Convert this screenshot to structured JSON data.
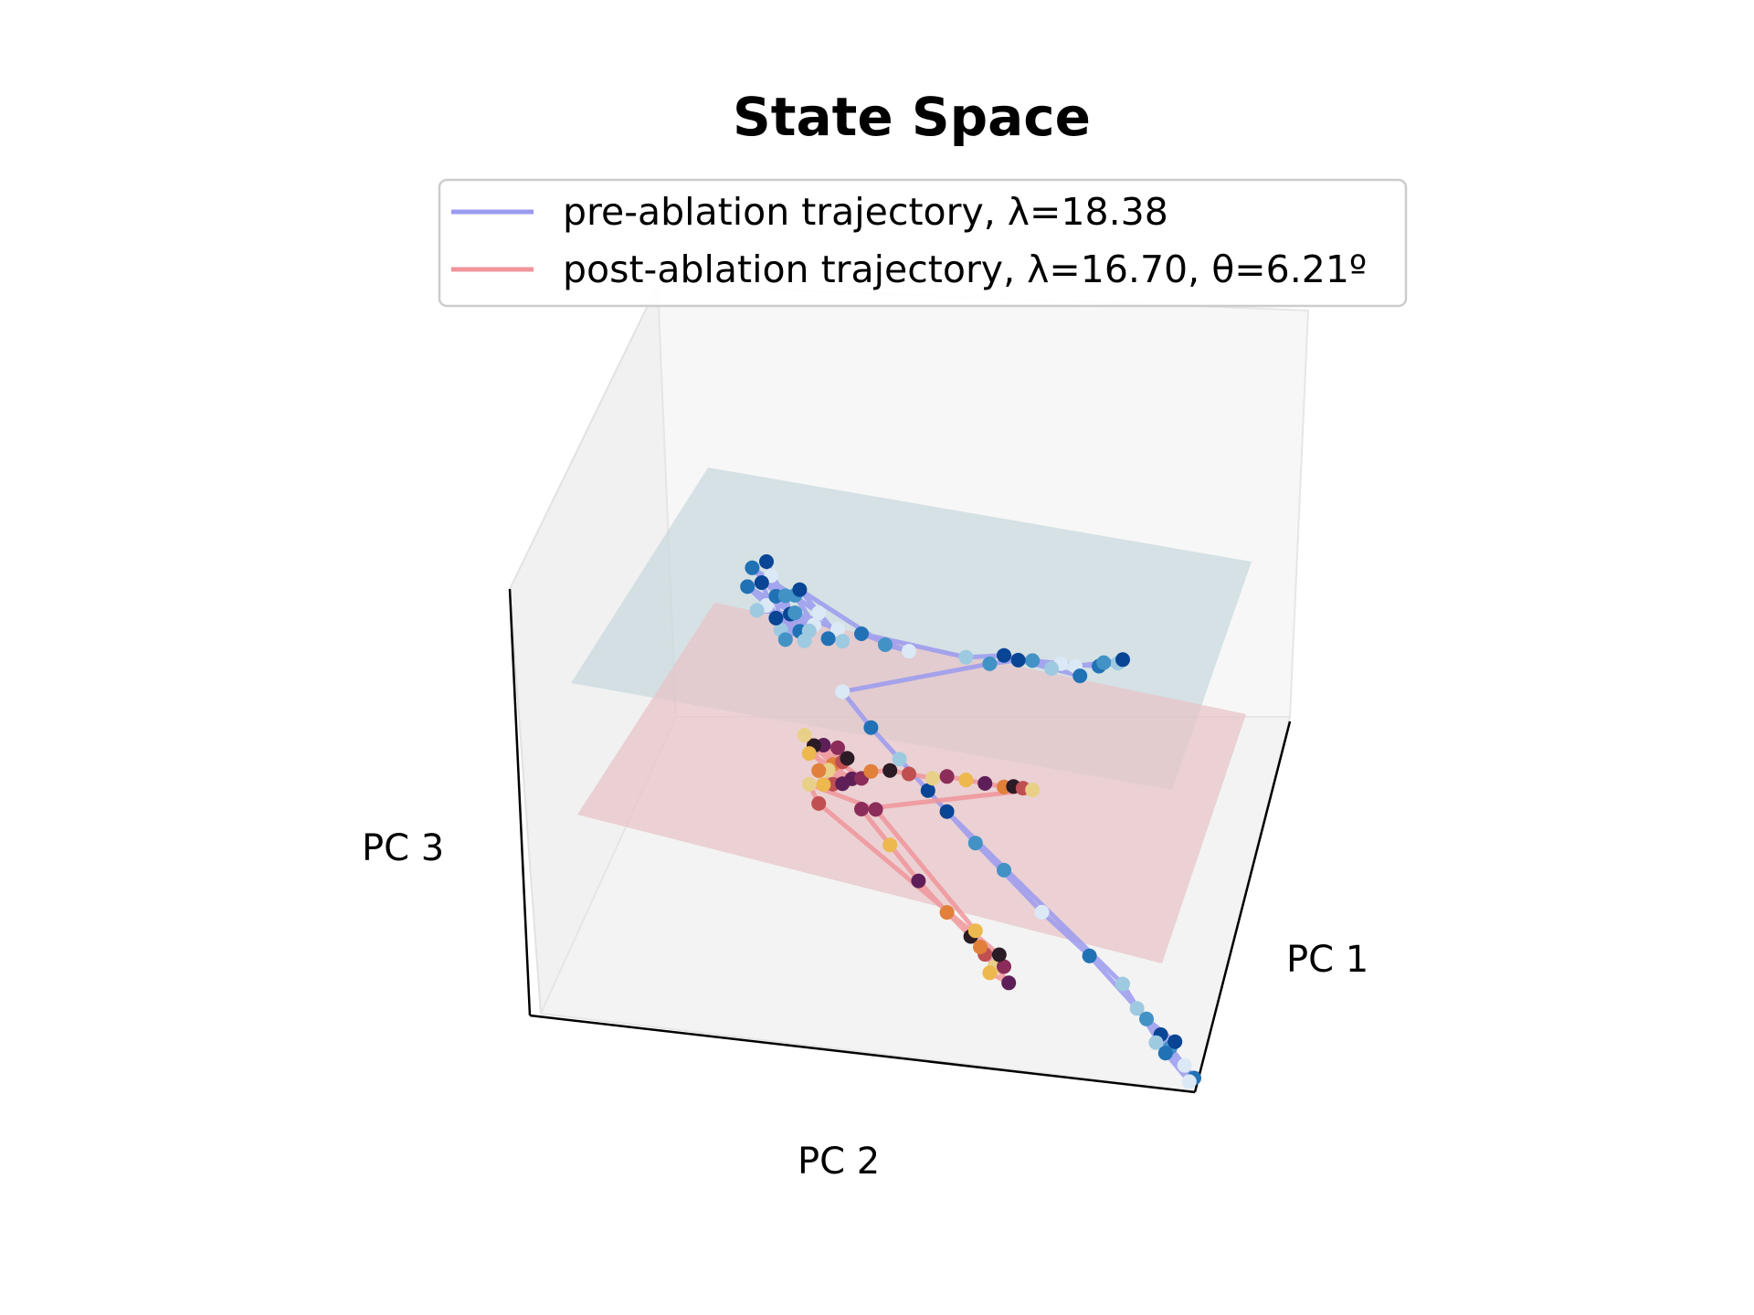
{
  "chart_data": {
    "type": "scatter",
    "projection": "3d",
    "title": "State Space",
    "axes": {
      "xlabel": "PC 1",
      "ylabel": "PC 2",
      "zlabel": "PC 3",
      "grid": false,
      "ticks": false
    },
    "legend": {
      "placement": "top-center",
      "entries": [
        {
          "label": "pre-ablation trajectory, λ=18.38",
          "color": "#9a9af0"
        },
        {
          "label": "post-ablation trajectory, λ=16.70, θ=6.21º",
          "color": "#f0959a"
        }
      ]
    },
    "planes": [
      {
        "name": "pre-ablation plane",
        "color": "#c8d8dc"
      },
      {
        "name": "post-ablation plane",
        "color": "#e8c4c6"
      }
    ],
    "series": [
      {
        "name": "pre-ablation trajectory",
        "line_color": "#9a9af0",
        "marker_colormap": [
          "#dbe9f6",
          "#9ecae1",
          "#4292c6",
          "#2171b5",
          "#084594"
        ],
        "points": [
          [
            0.2,
            0.35
          ],
          [
            0.22,
            0.42
          ],
          [
            0.18,
            0.3
          ],
          [
            0.25,
            0.38
          ],
          [
            0.24,
            0.45
          ],
          [
            0.21,
            0.5
          ],
          [
            0.27,
            0.33
          ],
          [
            0.23,
            0.28
          ],
          [
            0.19,
            0.44
          ],
          [
            0.26,
            0.48
          ],
          [
            0.3,
            0.4
          ],
          [
            0.16,
            0.38
          ],
          [
            0.28,
            0.3
          ],
          [
            0.2,
            0.55
          ],
          [
            0.24,
            0.25
          ],
          [
            0.31,
            0.47
          ],
          [
            0.17,
            0.48
          ],
          [
            0.29,
            0.36
          ],
          [
            0.22,
            0.32
          ],
          [
            0.26,
            0.4
          ],
          [
            0.35,
            0.45
          ],
          [
            0.33,
            0.38
          ],
          [
            0.36,
            0.41
          ],
          [
            0.27,
            0.52
          ],
          [
            0.45,
            0.52
          ],
          [
            0.5,
            0.56
          ],
          [
            0.4,
            0.5
          ],
          [
            0.62,
            0.7
          ],
          [
            0.7,
            0.82
          ],
          [
            0.76,
            0.88
          ],
          [
            0.82,
            0.95
          ],
          [
            0.9,
            1.05
          ],
          [
            0.94,
            1.12
          ],
          [
            0.95,
            1.15
          ],
          [
            0.91,
            1.08
          ],
          [
            0.85,
            0.98
          ],
          [
            0.86,
            0.95
          ],
          [
            0.8,
            0.9
          ],
          [
            0.73,
            0.84
          ],
          [
            0.67,
            0.74
          ],
          [
            0.36,
            0.18
          ],
          [
            0.42,
            0.1
          ],
          [
            0.48,
            0.04
          ],
          [
            0.54,
            -0.02
          ],
          [
            0.64,
            -0.12
          ],
          [
            0.78,
            -0.24
          ],
          [
            0.88,
            -0.3
          ],
          [
            0.98,
            -0.4
          ],
          [
            1.03,
            -0.45
          ],
          [
            1.05,
            -0.48
          ],
          [
            1.08,
            -0.52
          ],
          [
            1.1,
            -0.55
          ],
          [
            1.02,
            -0.5
          ],
          [
            1.06,
            -0.44
          ],
          [
            1.0,
            -0.42
          ],
          [
            1.09,
            -0.58
          ],
          [
            1.04,
            -0.52
          ],
          [
            0.95,
            -0.33
          ],
          [
            0.58,
            -0.06
          ],
          [
            0.7,
            -0.16
          ]
        ]
      },
      {
        "name": "post-ablation trajectory",
        "line_color": "#f0959a",
        "marker_colormap": [
          "#2a1b25",
          "#5e1f58",
          "#8c2c5a",
          "#c04f52",
          "#e0803a",
          "#edb84e",
          "#e8d088"
        ],
        "points": [
          [
            0.32,
            -0.12
          ],
          [
            0.34,
            -0.18
          ],
          [
            0.3,
            -0.15
          ],
          [
            0.36,
            -0.14
          ],
          [
            0.33,
            -0.22
          ],
          [
            0.35,
            -0.09
          ],
          [
            0.29,
            -0.2
          ],
          [
            0.38,
            -0.19
          ],
          [
            0.31,
            -0.25
          ],
          [
            0.37,
            -0.11
          ],
          [
            0.34,
            -0.27
          ],
          [
            0.28,
            -0.13
          ],
          [
            0.4,
            -0.16
          ],
          [
            0.32,
            -0.3
          ],
          [
            0.36,
            -0.24
          ],
          [
            0.42,
            -0.1
          ],
          [
            0.46,
            -0.04
          ],
          [
            0.5,
            0.0
          ],
          [
            0.55,
            0.05
          ],
          [
            0.58,
            0.1
          ],
          [
            0.62,
            0.14
          ],
          [
            0.66,
            0.18
          ],
          [
            0.7,
            0.22
          ],
          [
            0.72,
            0.25
          ],
          [
            0.74,
            0.27
          ],
          [
            0.76,
            0.29
          ],
          [
            0.4,
            -0.3
          ],
          [
            0.46,
            -0.38
          ],
          [
            0.52,
            -0.46
          ],
          [
            0.58,
            -0.52
          ],
          [
            0.63,
            -0.56
          ],
          [
            0.66,
            -0.6
          ],
          [
            0.68,
            -0.63
          ],
          [
            0.7,
            -0.6
          ],
          [
            0.67,
            -0.67
          ],
          [
            0.71,
            -0.66
          ],
          [
            0.65,
            -0.58
          ],
          [
            0.69,
            -0.56
          ],
          [
            0.31,
            -0.4
          ],
          [
            0.29,
            -0.34
          ],
          [
            0.43,
            -0.26
          ],
          [
            0.64,
            -0.52
          ]
        ]
      }
    ]
  }
}
